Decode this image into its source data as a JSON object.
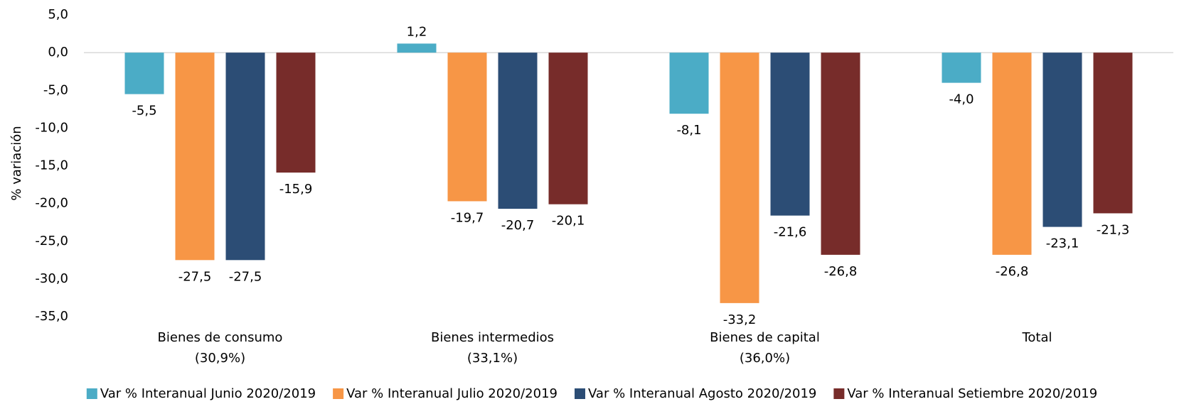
{
  "chart_data": {
    "type": "bar",
    "y_label": "% variación",
    "categories": [
      [
        "Bienes de consumo",
        "(30,9%)"
      ],
      [
        "Bienes intermedios",
        "(33,1%)"
      ],
      [
        "Bienes de capital",
        "(36,0%)"
      ],
      [
        "Total"
      ]
    ],
    "series": [
      {
        "name": "Var % Interanual Junio 2020/2019",
        "color": "#4bacc6",
        "values": [
          -5.5,
          1.2,
          -8.1,
          -4.0
        ],
        "value_labels": [
          "-5,5",
          "1,2",
          "-8,1",
          "-4,0"
        ]
      },
      {
        "name": "Var % Interanual Julio 2020/2019",
        "color": "#f79646",
        "values": [
          -27.5,
          -19.7,
          -33.2,
          -26.8
        ],
        "value_labels": [
          "-27,5",
          "-19,7",
          "-33,2",
          "-26,8"
        ]
      },
      {
        "name": "Var % Interanual Agosto 2020/2019",
        "color": "#2c4d75",
        "values": [
          -27.5,
          -20.7,
          -21.6,
          -23.1
        ],
        "value_labels": [
          "-27,5",
          "-20,7",
          "-21,6",
          "-23,1"
        ]
      },
      {
        "name": "Var % Interanual Setiembre 2020/2019",
        "color": "#772c2a",
        "values": [
          -15.9,
          -20.1,
          -26.8,
          -21.3
        ],
        "value_labels": [
          "-15,9",
          "-20,1",
          "-26,8",
          "-21,3"
        ]
      }
    ],
    "ylim": [
      -35,
      5
    ],
    "yticks": [
      {
        "value": 5,
        "label": "5,0"
      },
      {
        "value": 0,
        "label": "0,0"
      },
      {
        "value": -5,
        "label": "-5,0"
      },
      {
        "value": -10,
        "label": "-10,0"
      },
      {
        "value": -15,
        "label": "-15,0"
      },
      {
        "value": -20,
        "label": "-20,0"
      },
      {
        "value": -25,
        "label": "-25,0"
      },
      {
        "value": -30,
        "label": "-30,0"
      },
      {
        "value": -35,
        "label": "-35,0"
      }
    ],
    "grid": false,
    "legend": "bottom"
  }
}
